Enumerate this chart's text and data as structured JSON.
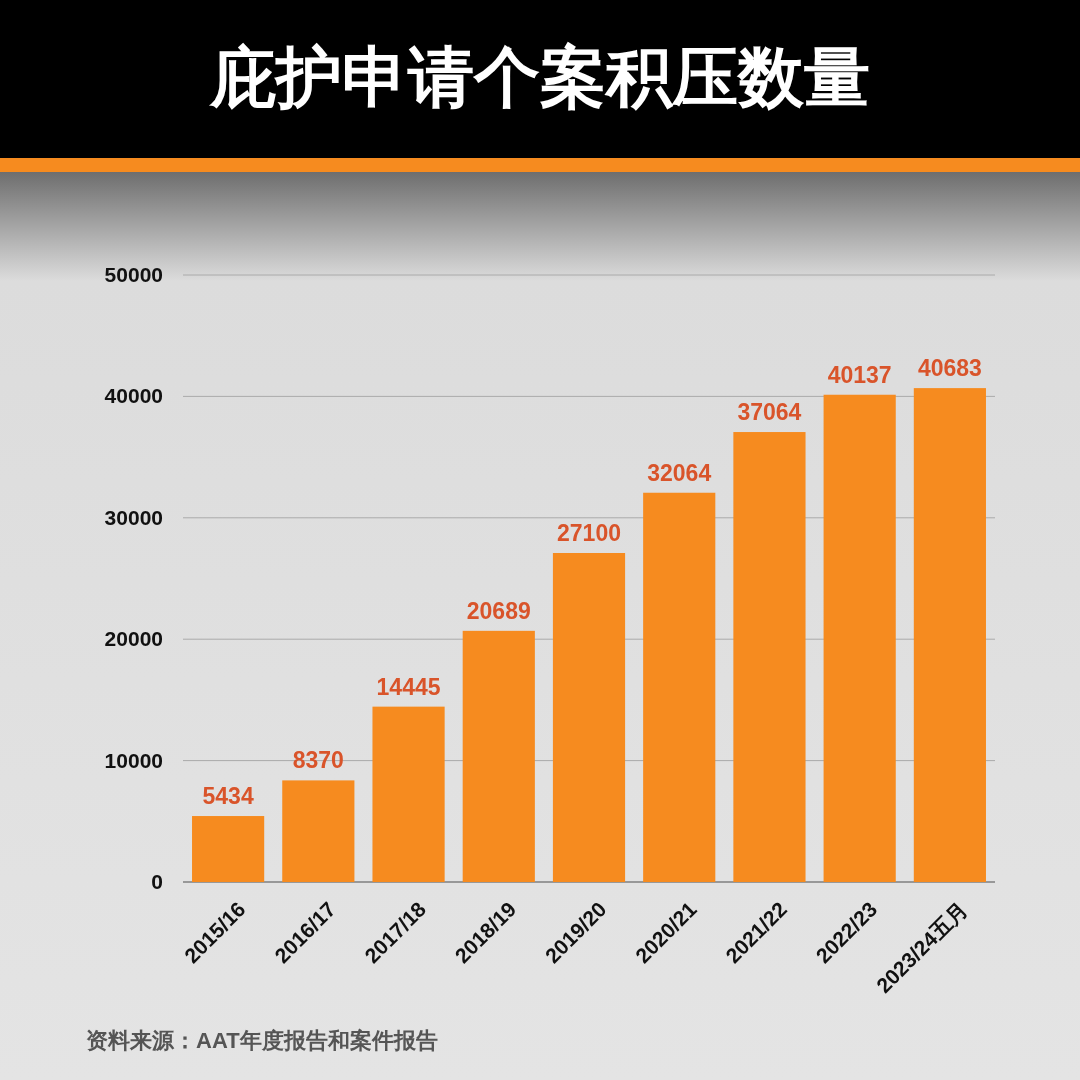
{
  "chart_data": {
    "type": "bar",
    "title": "庇护申请个案积压数量",
    "categories": [
      "2015/16",
      "2016/17",
      "2017/18",
      "2018/19",
      "2019/20",
      "2020/21",
      "2021/22",
      "2022/23",
      "2023/24五月"
    ],
    "values": [
      5434,
      8370,
      14445,
      20689,
      27100,
      32064,
      37064,
      40137,
      40683
    ],
    "color": "#f68b1f",
    "ylim": [
      0,
      50000
    ],
    "yticks": [
      0,
      10000,
      20000,
      30000,
      40000,
      50000
    ],
    "grid": "y",
    "data_labels": true,
    "annotations": [
      "资料来源：AAT年度报告和案件报告"
    ]
  }
}
